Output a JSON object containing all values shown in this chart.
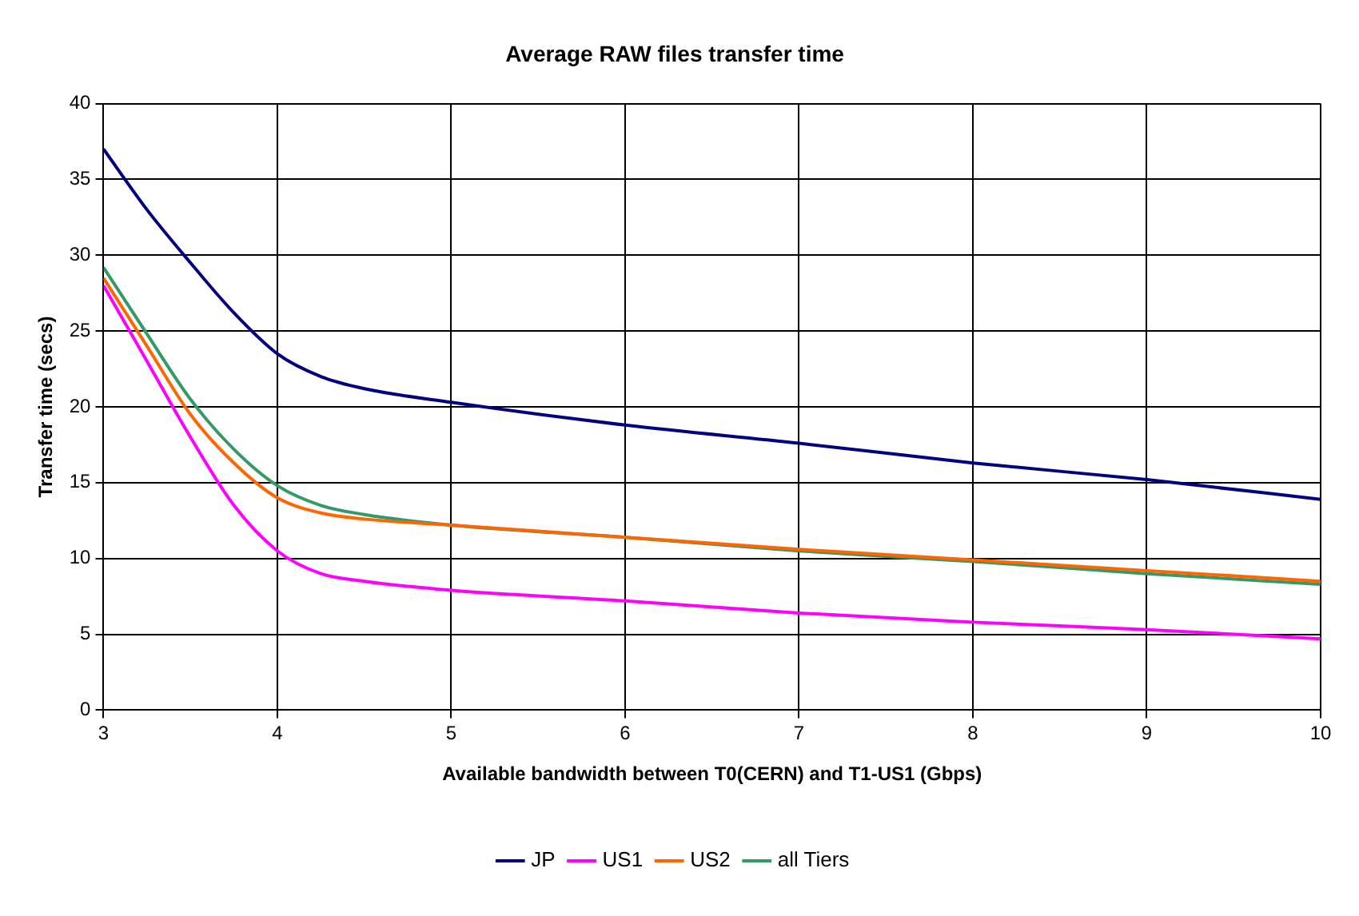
{
  "chart_data": {
    "type": "line",
    "title": "Average RAW files transfer time",
    "xlabel": "Available bandwidth between T0(CERN) and T1-US1 (Gbps)",
    "ylabel": "Transfer time (secs)",
    "x": [
      3,
      3.25,
      3.5,
      3.75,
      4,
      4.25,
      4.5,
      5,
      6,
      7,
      8,
      9,
      10
    ],
    "series": [
      {
        "name": "JP",
        "color": "#000080",
        "values": [
          37,
          33,
          29.5,
          26.2,
          23.5,
          22,
          21.2,
          20.3,
          18.8,
          17.6,
          16.3,
          15.2,
          13.9
        ]
      },
      {
        "name": "US1",
        "color": "#ff00ff",
        "values": [
          28,
          23,
          18,
          13.5,
          10.5,
          9,
          8.5,
          7.9,
          7.2,
          6.4,
          5.8,
          5.3,
          4.7
        ]
      },
      {
        "name": "US2",
        "color": "#ff6600",
        "values": [
          28.5,
          24,
          19.5,
          16.3,
          14,
          13,
          12.6,
          12.2,
          11.4,
          10.6,
          9.9,
          9.2,
          8.5
        ]
      },
      {
        "name": "all Tiers",
        "color": "#339966",
        "values": [
          29.2,
          24.8,
          20.5,
          17.2,
          14.8,
          13.5,
          12.9,
          12.2,
          11.4,
          10.5,
          9.8,
          9,
          8.3
        ]
      }
    ],
    "xlim": [
      3,
      10
    ],
    "xticks": [
      3,
      4,
      5,
      6,
      7,
      8,
      9,
      10
    ],
    "ylim": [
      0,
      40
    ],
    "yticks": [
      0,
      5,
      10,
      15,
      20,
      25,
      30,
      35,
      40
    ],
    "grid": true,
    "legend": "bottom",
    "marker": "none",
    "line_style": "solid"
  }
}
